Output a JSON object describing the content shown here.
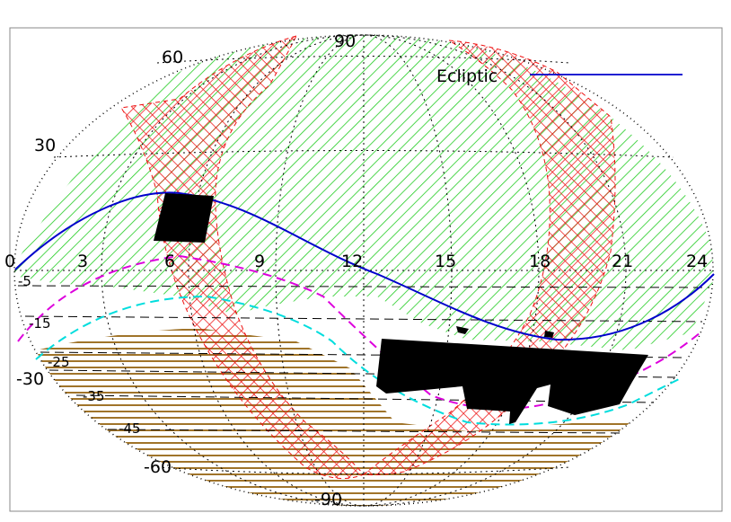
{
  "map": {
    "projection": "aitoff",
    "ra_labels": [
      "0",
      "3",
      "6",
      "9",
      "12",
      "15",
      "18",
      "21",
      "24"
    ],
    "dec_labels_upper": [
      "90",
      "60",
      "30"
    ],
    "dec_labels_lower": [
      "-5",
      "-15",
      "-25",
      "-30",
      "-35",
      "-45",
      "-60",
      "-90"
    ],
    "legend": {
      "label": "Ecliptic",
      "color": "#0000cc"
    },
    "colors": {
      "green_hatch": "#22cc22",
      "red_crosshatch": "#ee1111",
      "brown_hatch": "#a0742a",
      "magenta_dash": "#dd00dd",
      "cyan_dash": "#00dddd",
      "grid": "#000000",
      "ecliptic": "#0000cc",
      "filled": "#000000"
    }
  }
}
